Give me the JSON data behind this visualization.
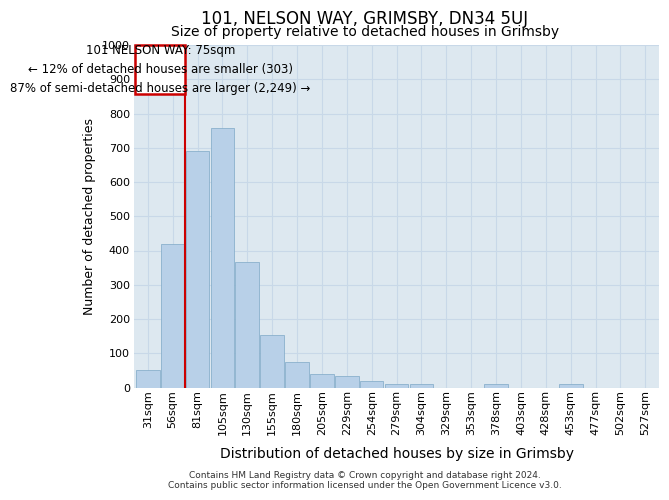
{
  "title": "101, NELSON WAY, GRIMSBY, DN34 5UJ",
  "subtitle": "Size of property relative to detached houses in Grimsby",
  "xlabel": "Distribution of detached houses by size in Grimsby",
  "ylabel": "Number of detached properties",
  "bins": [
    "31sqm",
    "56sqm",
    "81sqm",
    "105sqm",
    "130sqm",
    "155sqm",
    "180sqm",
    "205sqm",
    "229sqm",
    "254sqm",
    "279sqm",
    "304sqm",
    "329sqm",
    "353sqm",
    "378sqm",
    "403sqm",
    "428sqm",
    "453sqm",
    "477sqm",
    "502sqm",
    "527sqm"
  ],
  "values": [
    50,
    420,
    690,
    757,
    365,
    152,
    75,
    40,
    33,
    18,
    10,
    10,
    0,
    0,
    10,
    0,
    0,
    10,
    0,
    0,
    0
  ],
  "bar_color": "#b8d0e8",
  "bar_edge_color": "#8ab0cc",
  "vline_color": "#cc0000",
  "vline_x": 1.5,
  "annotation_text": "101 NELSON WAY: 75sqm\n← 12% of detached houses are smaller (303)\n87% of semi-detached houses are larger (2,249) →",
  "annotation_box_color": "#ffffff",
  "annotation_box_edge": "#cc0000",
  "ann_xl_data": -0.5,
  "ann_xr_data": 1.5,
  "ann_yb_data": 858,
  "ann_yt_data": 1000,
  "ylim": [
    0,
    1000
  ],
  "yticks": [
    0,
    100,
    200,
    300,
    400,
    500,
    600,
    700,
    800,
    900,
    1000
  ],
  "grid_color": "#c8d8e8",
  "bg_color": "#dde8f0",
  "footer": "Contains HM Land Registry data © Crown copyright and database right 2024.\nContains public sector information licensed under the Open Government Licence v3.0.",
  "title_fontsize": 12,
  "subtitle_fontsize": 10,
  "ylabel_fontsize": 9,
  "xlabel_fontsize": 10,
  "tick_fontsize": 8,
  "ann_fontsize": 8.5,
  "footer_fontsize": 6.5
}
